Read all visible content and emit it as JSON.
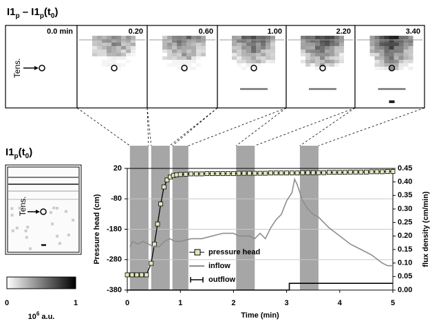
{
  "panel_title": [
    {
      "text": "I1"
    },
    {
      "text": "p",
      "sub": true
    },
    {
      "text": " – I1"
    },
    {
      "text": "p",
      "sub": true
    },
    {
      "text": "(t"
    },
    {
      "text": "0",
      "sub": true
    },
    {
      "text": ")"
    }
  ],
  "snapshots": {
    "labels": [
      "0.0 min",
      "0.20",
      "0.60",
      "1.00",
      "2.20",
      "3.40"
    ],
    "marker_label": "Tens."
  },
  "reference": {
    "title": [
      {
        "text": "I1"
      },
      {
        "text": "p",
        "sub": true
      },
      {
        "text": "(t"
      },
      {
        "text": "0",
        "sub": true
      },
      {
        "text": ")"
      }
    ],
    "marker_label": "Tens."
  },
  "colorbar": {
    "min_label": "0",
    "max_label": "1",
    "unit": [
      {
        "text": "10"
      },
      {
        "text": "6",
        "sup": true
      },
      {
        "text": " a.u."
      }
    ]
  },
  "chart_data": {
    "type": "line",
    "xlabel": "Time (min)",
    "ylabel": "Pressure head (cm)",
    "y2label": "flux density (cm/min)",
    "xlim": [
      0,
      5
    ],
    "xticks": [
      0,
      1,
      2,
      3,
      4,
      5
    ],
    "ylim": [
      -380,
      20
    ],
    "yticks": [
      20,
      -80,
      -180,
      -280,
      -380
    ],
    "y2lim": [
      0,
      0.45
    ],
    "y2ticks": [
      {
        "value": 0,
        "label": "0.00"
      },
      {
        "value": 0.05,
        "label": "0.05"
      },
      {
        "value": 0.1,
        "label": "0.10"
      },
      {
        "value": 0.15,
        "label": "0.15"
      },
      {
        "value": 0.2,
        "label": "0.20"
      },
      {
        "value": 0.25,
        "label": "0.25"
      },
      {
        "value": 0.3,
        "label": "0.30"
      },
      {
        "value": 0.35,
        "label": "0.35"
      },
      {
        "value": 0.4,
        "label": "0.40"
      },
      {
        "value": 0.45,
        "label": "0.45"
      }
    ],
    "grid": true,
    "legend": "lower left",
    "shaded_intervals": [
      [
        0.05,
        0.4
      ],
      [
        0.45,
        0.8
      ],
      [
        0.85,
        1.15
      ],
      [
        2.05,
        2.4
      ],
      [
        3.25,
        3.6
      ]
    ],
    "shade_color": "#a6a6a6",
    "series": [
      {
        "name": "pressure head",
        "color": "#000000",
        "marker": "square",
        "marker_fill": "#e3e6bd",
        "x": [
          0,
          0.09,
          0.18,
          0.27,
          0.36,
          0.45,
          0.51,
          0.57,
          0.63,
          0.69,
          0.75,
          0.81,
          0.87,
          0.93,
          1.0,
          1.1,
          1.2,
          1.3,
          1.4,
          1.5,
          1.6,
          1.7,
          1.8,
          1.9,
          2.0,
          2.1,
          2.2,
          2.3,
          2.4,
          2.5,
          2.6,
          2.7,
          2.8,
          2.9,
          3.0,
          3.1,
          3.2,
          3.3,
          3.4,
          3.5,
          3.6,
          3.7,
          3.8,
          3.9,
          4.0,
          4.1,
          4.2,
          4.3,
          4.4,
          4.5,
          4.6,
          4.7,
          4.8,
          4.9,
          5.0
        ],
        "values": [
          -330,
          -330,
          -330,
          -330,
          -330,
          -292,
          -229,
          -163,
          -97,
          -41,
          -18,
          -8,
          -3,
          -1,
          0,
          1,
          2,
          2,
          2,
          3,
          3,
          3,
          3,
          3,
          3,
          4,
          4,
          4,
          4,
          4,
          4,
          5,
          5,
          5,
          5,
          5,
          5,
          6,
          6,
          6,
          6,
          6,
          7,
          7,
          7,
          7,
          8,
          8,
          8,
          8,
          9,
          9,
          9,
          10,
          10
        ]
      },
      {
        "name": "inflow",
        "color": "#8c8c8c",
        "axis": "y2",
        "x": [
          0.05,
          0.1,
          0.2,
          0.3,
          0.4,
          0.5,
          0.6,
          0.7,
          0.8,
          0.9,
          1.0,
          1.2,
          1.4,
          1.6,
          1.8,
          2.0,
          2.1,
          2.3,
          2.4,
          2.5,
          2.6,
          2.7,
          2.8,
          2.9,
          3.0,
          3.1,
          3.15,
          3.2,
          3.3,
          3.4,
          3.5,
          3.6,
          3.8,
          4.0,
          4.2,
          4.4,
          4.6,
          4.8,
          4.9,
          5.0
        ],
        "values": [
          0.16,
          0.18,
          0.17,
          0.18,
          0.17,
          0.16,
          0.16,
          0.18,
          0.19,
          0.18,
          0.18,
          0.19,
          0.19,
          0.2,
          0.21,
          0.21,
          0.2,
          0.2,
          0.19,
          0.21,
          0.19,
          0.23,
          0.26,
          0.28,
          0.33,
          0.36,
          0.41,
          0.39,
          0.33,
          0.3,
          0.28,
          0.27,
          0.23,
          0.2,
          0.17,
          0.15,
          0.13,
          0.1,
          0.09,
          0.09
        ]
      },
      {
        "name": "outflow",
        "color": "#000000",
        "axis": "y2",
        "marker": "cap",
        "x": [
          0,
          3.05,
          3.05,
          5
        ],
        "values": [
          0,
          0,
          0.025,
          0.025
        ]
      }
    ]
  }
}
